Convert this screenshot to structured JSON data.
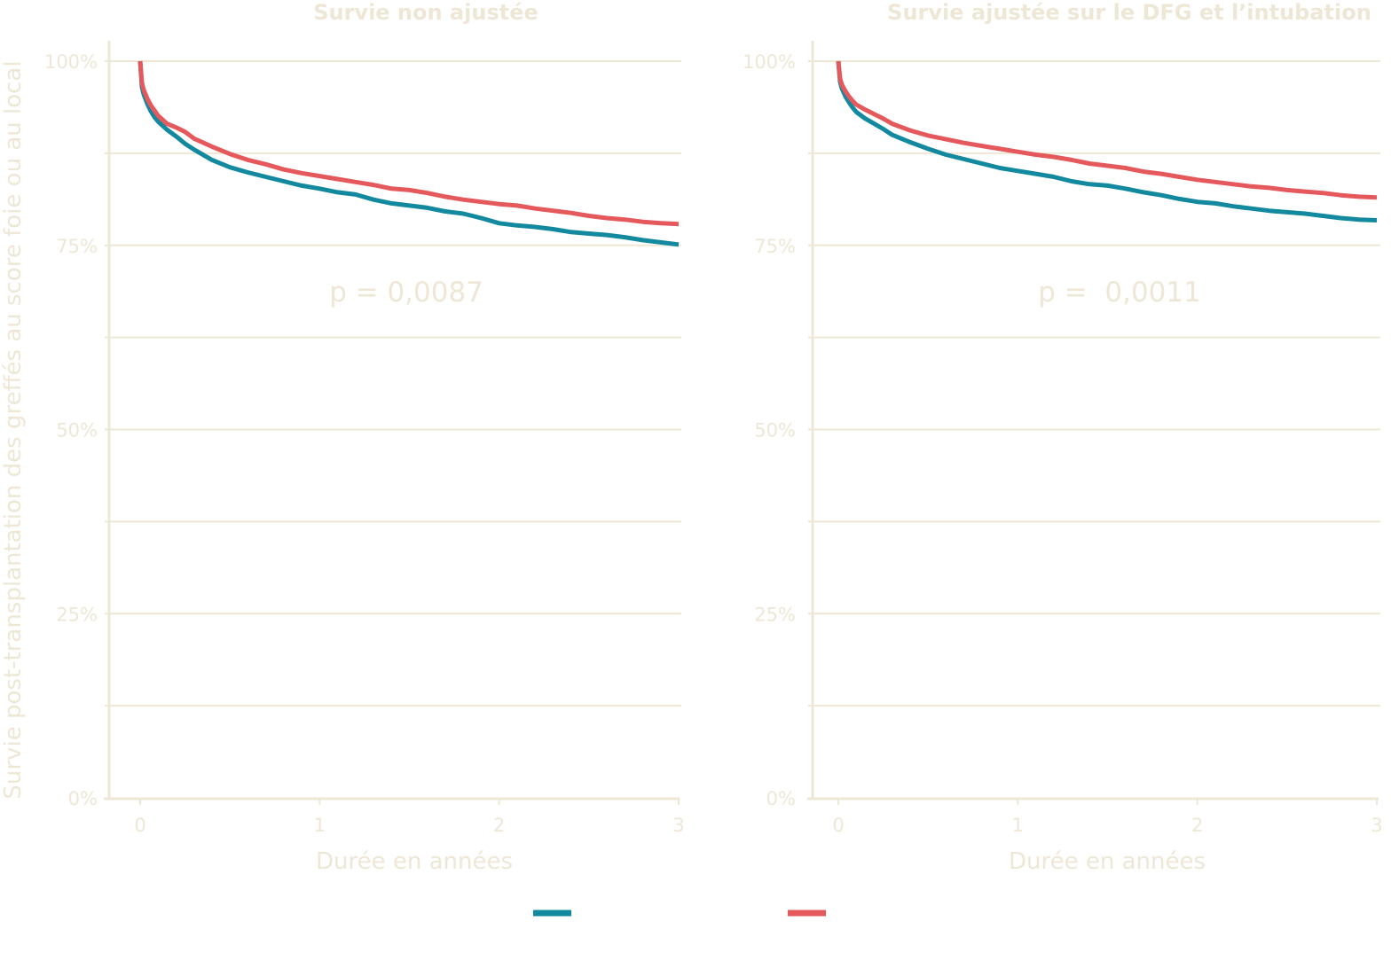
{
  "figure": {
    "y_axis_label": "Survie post-transplantation des greffés au score foie ou au local",
    "legend": [
      {
        "name": "",
        "color": "#12899e"
      },
      {
        "name": "",
        "color": "#e5585b"
      }
    ]
  },
  "chart_data": [
    {
      "type": "line",
      "title": "Survie non ajustée",
      "xlabel": "Durée en années",
      "ylabel": "Survie post-transplantation des greffés au score foie ou au local",
      "xlim": [
        -0.17,
        3
      ],
      "ylim": [
        0,
        1
      ],
      "xticks": [
        0,
        1,
        2,
        3
      ],
      "xtick_labels": [
        "0",
        "1",
        "2",
        "3"
      ],
      "yticks": [
        0,
        0.25,
        0.5,
        0.75,
        1
      ],
      "ytick_labels": [
        "0%",
        "25%",
        "50%",
        "75%",
        "100%"
      ],
      "ygrid": [
        0,
        0.125,
        0.25,
        0.375,
        0.5,
        0.625,
        0.75,
        0.875,
        1
      ],
      "annotation": "p = 0,0087",
      "series": [
        {
          "name": "",
          "color": "#12899e",
          "x": [
            0,
            0.01,
            0.02,
            0.04,
            0.06,
            0.08,
            0.1,
            0.15,
            0.2,
            0.25,
            0.3,
            0.4,
            0.5,
            0.6,
            0.7,
            0.8,
            0.9,
            1.0,
            1.1,
            1.2,
            1.3,
            1.4,
            1.5,
            1.6,
            1.7,
            1.8,
            1.9,
            2.0,
            2.1,
            2.2,
            2.3,
            2.4,
            2.5,
            2.6,
            2.7,
            2.8,
            2.9,
            3.0
          ],
          "y": [
            1.0,
            0.965,
            0.955,
            0.942,
            0.932,
            0.924,
            0.918,
            0.907,
            0.898,
            0.888,
            0.88,
            0.866,
            0.856,
            0.849,
            0.843,
            0.837,
            0.831,
            0.827,
            0.822,
            0.819,
            0.812,
            0.807,
            0.804,
            0.801,
            0.796,
            0.793,
            0.787,
            0.78,
            0.777,
            0.775,
            0.772,
            0.768,
            0.766,
            0.764,
            0.761,
            0.757,
            0.754,
            0.751
          ]
        },
        {
          "name": "",
          "color": "#e5585b",
          "x": [
            0,
            0.01,
            0.02,
            0.04,
            0.06,
            0.08,
            0.1,
            0.15,
            0.2,
            0.25,
            0.3,
            0.4,
            0.5,
            0.6,
            0.7,
            0.8,
            0.9,
            1.0,
            1.1,
            1.2,
            1.3,
            1.4,
            1.5,
            1.6,
            1.7,
            1.8,
            1.9,
            2.0,
            2.1,
            2.2,
            2.3,
            2.4,
            2.5,
            2.6,
            2.7,
            2.8,
            2.9,
            3.0
          ],
          "y": [
            1.0,
            0.97,
            0.961,
            0.949,
            0.94,
            0.933,
            0.926,
            0.915,
            0.91,
            0.904,
            0.895,
            0.884,
            0.874,
            0.866,
            0.86,
            0.853,
            0.848,
            0.844,
            0.84,
            0.836,
            0.832,
            0.827,
            0.825,
            0.821,
            0.816,
            0.812,
            0.809,
            0.806,
            0.804,
            0.8,
            0.797,
            0.794,
            0.79,
            0.787,
            0.785,
            0.782,
            0.78,
            0.779
          ]
        }
      ]
    },
    {
      "type": "line",
      "title": "Survie ajustée sur le DFG et l’intubation",
      "xlabel": "Durée en années",
      "ylabel": "",
      "xlim": [
        -0.15,
        3
      ],
      "ylim": [
        0,
        1
      ],
      "xticks": [
        0,
        1,
        2,
        3
      ],
      "xtick_labels": [
        "0",
        "1",
        "2",
        "3"
      ],
      "yticks": [
        0,
        0.25,
        0.5,
        0.75,
        1
      ],
      "ytick_labels": [
        "0%",
        "25%",
        "50%",
        "75%",
        "100%"
      ],
      "ygrid": [
        0,
        0.125,
        0.25,
        0.375,
        0.5,
        0.625,
        0.75,
        0.875,
        1
      ],
      "annotation": "p =  0,0011",
      "series": [
        {
          "name": "",
          "color": "#12899e",
          "x": [
            0,
            0.01,
            0.02,
            0.04,
            0.06,
            0.08,
            0.1,
            0.15,
            0.2,
            0.25,
            0.3,
            0.4,
            0.5,
            0.6,
            0.7,
            0.8,
            0.9,
            1.0,
            1.1,
            1.2,
            1.3,
            1.4,
            1.5,
            1.6,
            1.7,
            1.8,
            1.9,
            2.0,
            2.1,
            2.2,
            2.3,
            2.4,
            2.5,
            2.6,
            2.7,
            2.8,
            2.9,
            3.0
          ],
          "y": [
            1.0,
            0.972,
            0.963,
            0.952,
            0.944,
            0.937,
            0.931,
            0.922,
            0.915,
            0.908,
            0.9,
            0.89,
            0.881,
            0.873,
            0.867,
            0.861,
            0.855,
            0.851,
            0.847,
            0.843,
            0.837,
            0.833,
            0.831,
            0.827,
            0.822,
            0.818,
            0.813,
            0.809,
            0.807,
            0.803,
            0.8,
            0.797,
            0.795,
            0.793,
            0.79,
            0.787,
            0.785,
            0.784
          ]
        },
        {
          "name": "",
          "color": "#e5585b",
          "x": [
            0,
            0.01,
            0.02,
            0.04,
            0.06,
            0.08,
            0.1,
            0.15,
            0.2,
            0.25,
            0.3,
            0.4,
            0.5,
            0.6,
            0.7,
            0.8,
            0.9,
            1.0,
            1.1,
            1.2,
            1.3,
            1.4,
            1.5,
            1.6,
            1.7,
            1.8,
            1.9,
            2.0,
            2.1,
            2.2,
            2.3,
            2.4,
            2.5,
            2.6,
            2.7,
            2.8,
            2.9,
            3.0
          ],
          "y": [
            1.0,
            0.976,
            0.968,
            0.959,
            0.952,
            0.946,
            0.941,
            0.934,
            0.928,
            0.922,
            0.915,
            0.906,
            0.899,
            0.894,
            0.889,
            0.885,
            0.881,
            0.877,
            0.873,
            0.87,
            0.866,
            0.861,
            0.858,
            0.855,
            0.85,
            0.847,
            0.843,
            0.839,
            0.836,
            0.833,
            0.83,
            0.828,
            0.825,
            0.823,
            0.821,
            0.818,
            0.816,
            0.815
          ]
        }
      ]
    }
  ]
}
